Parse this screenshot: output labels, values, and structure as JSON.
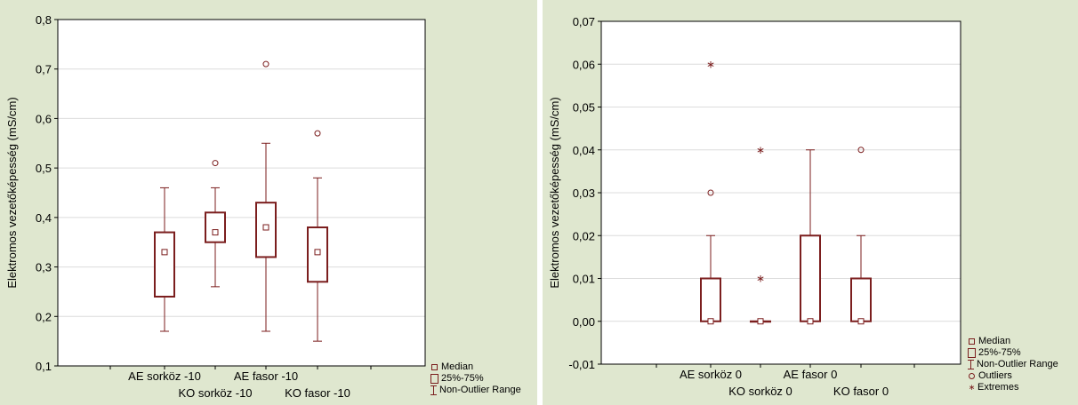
{
  "chart_data": [
    {
      "type": "box",
      "ylabel": "Elektromos vezetőképesség (mS/cm)",
      "ylim": [
        0.1,
        0.8
      ],
      "yticks": [
        0.1,
        0.2,
        0.3,
        0.4,
        0.5,
        0.6,
        0.7,
        0.8
      ],
      "ytick_labels": [
        "0,1",
        "0,2",
        "0,3",
        "0,4",
        "0,5",
        "0,6",
        "0,7",
        "0,8"
      ],
      "grid": true,
      "categories": [
        "AE sorköz -10",
        "KO sorköz -10",
        "AE fasor -10",
        "KO fasor -10"
      ],
      "label_rows": [
        0,
        1,
        0,
        1
      ],
      "boxes": [
        {
          "median": 0.33,
          "q1": 0.24,
          "q3": 0.37,
          "whisker_low": 0.17,
          "whisker_high": 0.46,
          "outliers": [],
          "extremes": []
        },
        {
          "median": 0.37,
          "q1": 0.35,
          "q3": 0.41,
          "whisker_low": 0.26,
          "whisker_high": 0.46,
          "outliers": [
            0.51
          ],
          "extremes": []
        },
        {
          "median": 0.38,
          "q1": 0.32,
          "q3": 0.43,
          "whisker_low": 0.17,
          "whisker_high": 0.55,
          "outliers": [
            0.71
          ],
          "extremes": []
        },
        {
          "median": 0.33,
          "q1": 0.27,
          "q3": 0.38,
          "whisker_low": 0.15,
          "whisker_high": 0.48,
          "outliers": [
            0.57
          ],
          "extremes": []
        }
      ],
      "legend": [
        "Median",
        "25%-75%",
        "Non-Outlier Range"
      ],
      "legend_position": "bottom-right",
      "color": "#7b1e1e"
    },
    {
      "type": "box",
      "ylabel": "Elektromos vezetőképesség (mS/cm)",
      "ylim": [
        -0.01,
        0.07
      ],
      "yticks": [
        -0.01,
        0.0,
        0.01,
        0.02,
        0.03,
        0.04,
        0.05,
        0.06,
        0.07
      ],
      "ytick_labels": [
        "-0,01",
        "0,00",
        "0,01",
        "0,02",
        "0,03",
        "0,04",
        "0,05",
        "0,06",
        "0,07"
      ],
      "grid": true,
      "categories": [
        "AE sorköz 0",
        "KO sorköz 0",
        "AE fasor 0",
        "KO fasor 0"
      ],
      "label_rows": [
        0,
        1,
        0,
        1
      ],
      "boxes": [
        {
          "median": 0.0,
          "q1": 0.0,
          "q3": 0.01,
          "whisker_low": 0.0,
          "whisker_high": 0.02,
          "outliers": [
            0.03
          ],
          "extremes": [
            0.06
          ]
        },
        {
          "median": 0.0,
          "q1": 0.0,
          "q3": 0.0,
          "whisker_low": 0.0,
          "whisker_high": 0.0,
          "outliers": [],
          "extremes": [
            0.01,
            0.04
          ]
        },
        {
          "median": 0.0,
          "q1": 0.0,
          "q3": 0.02,
          "whisker_low": 0.0,
          "whisker_high": 0.04,
          "outliers": [],
          "extremes": []
        },
        {
          "median": 0.0,
          "q1": 0.0,
          "q3": 0.01,
          "whisker_low": 0.0,
          "whisker_high": 0.02,
          "outliers": [
            0.04
          ],
          "extremes": []
        }
      ],
      "legend": [
        "Median",
        "25%-75%",
        "Non-Outlier Range",
        "Outliers",
        "Extremes"
      ],
      "legend_position": "bottom-right",
      "color": "#7b1e1e"
    }
  ]
}
